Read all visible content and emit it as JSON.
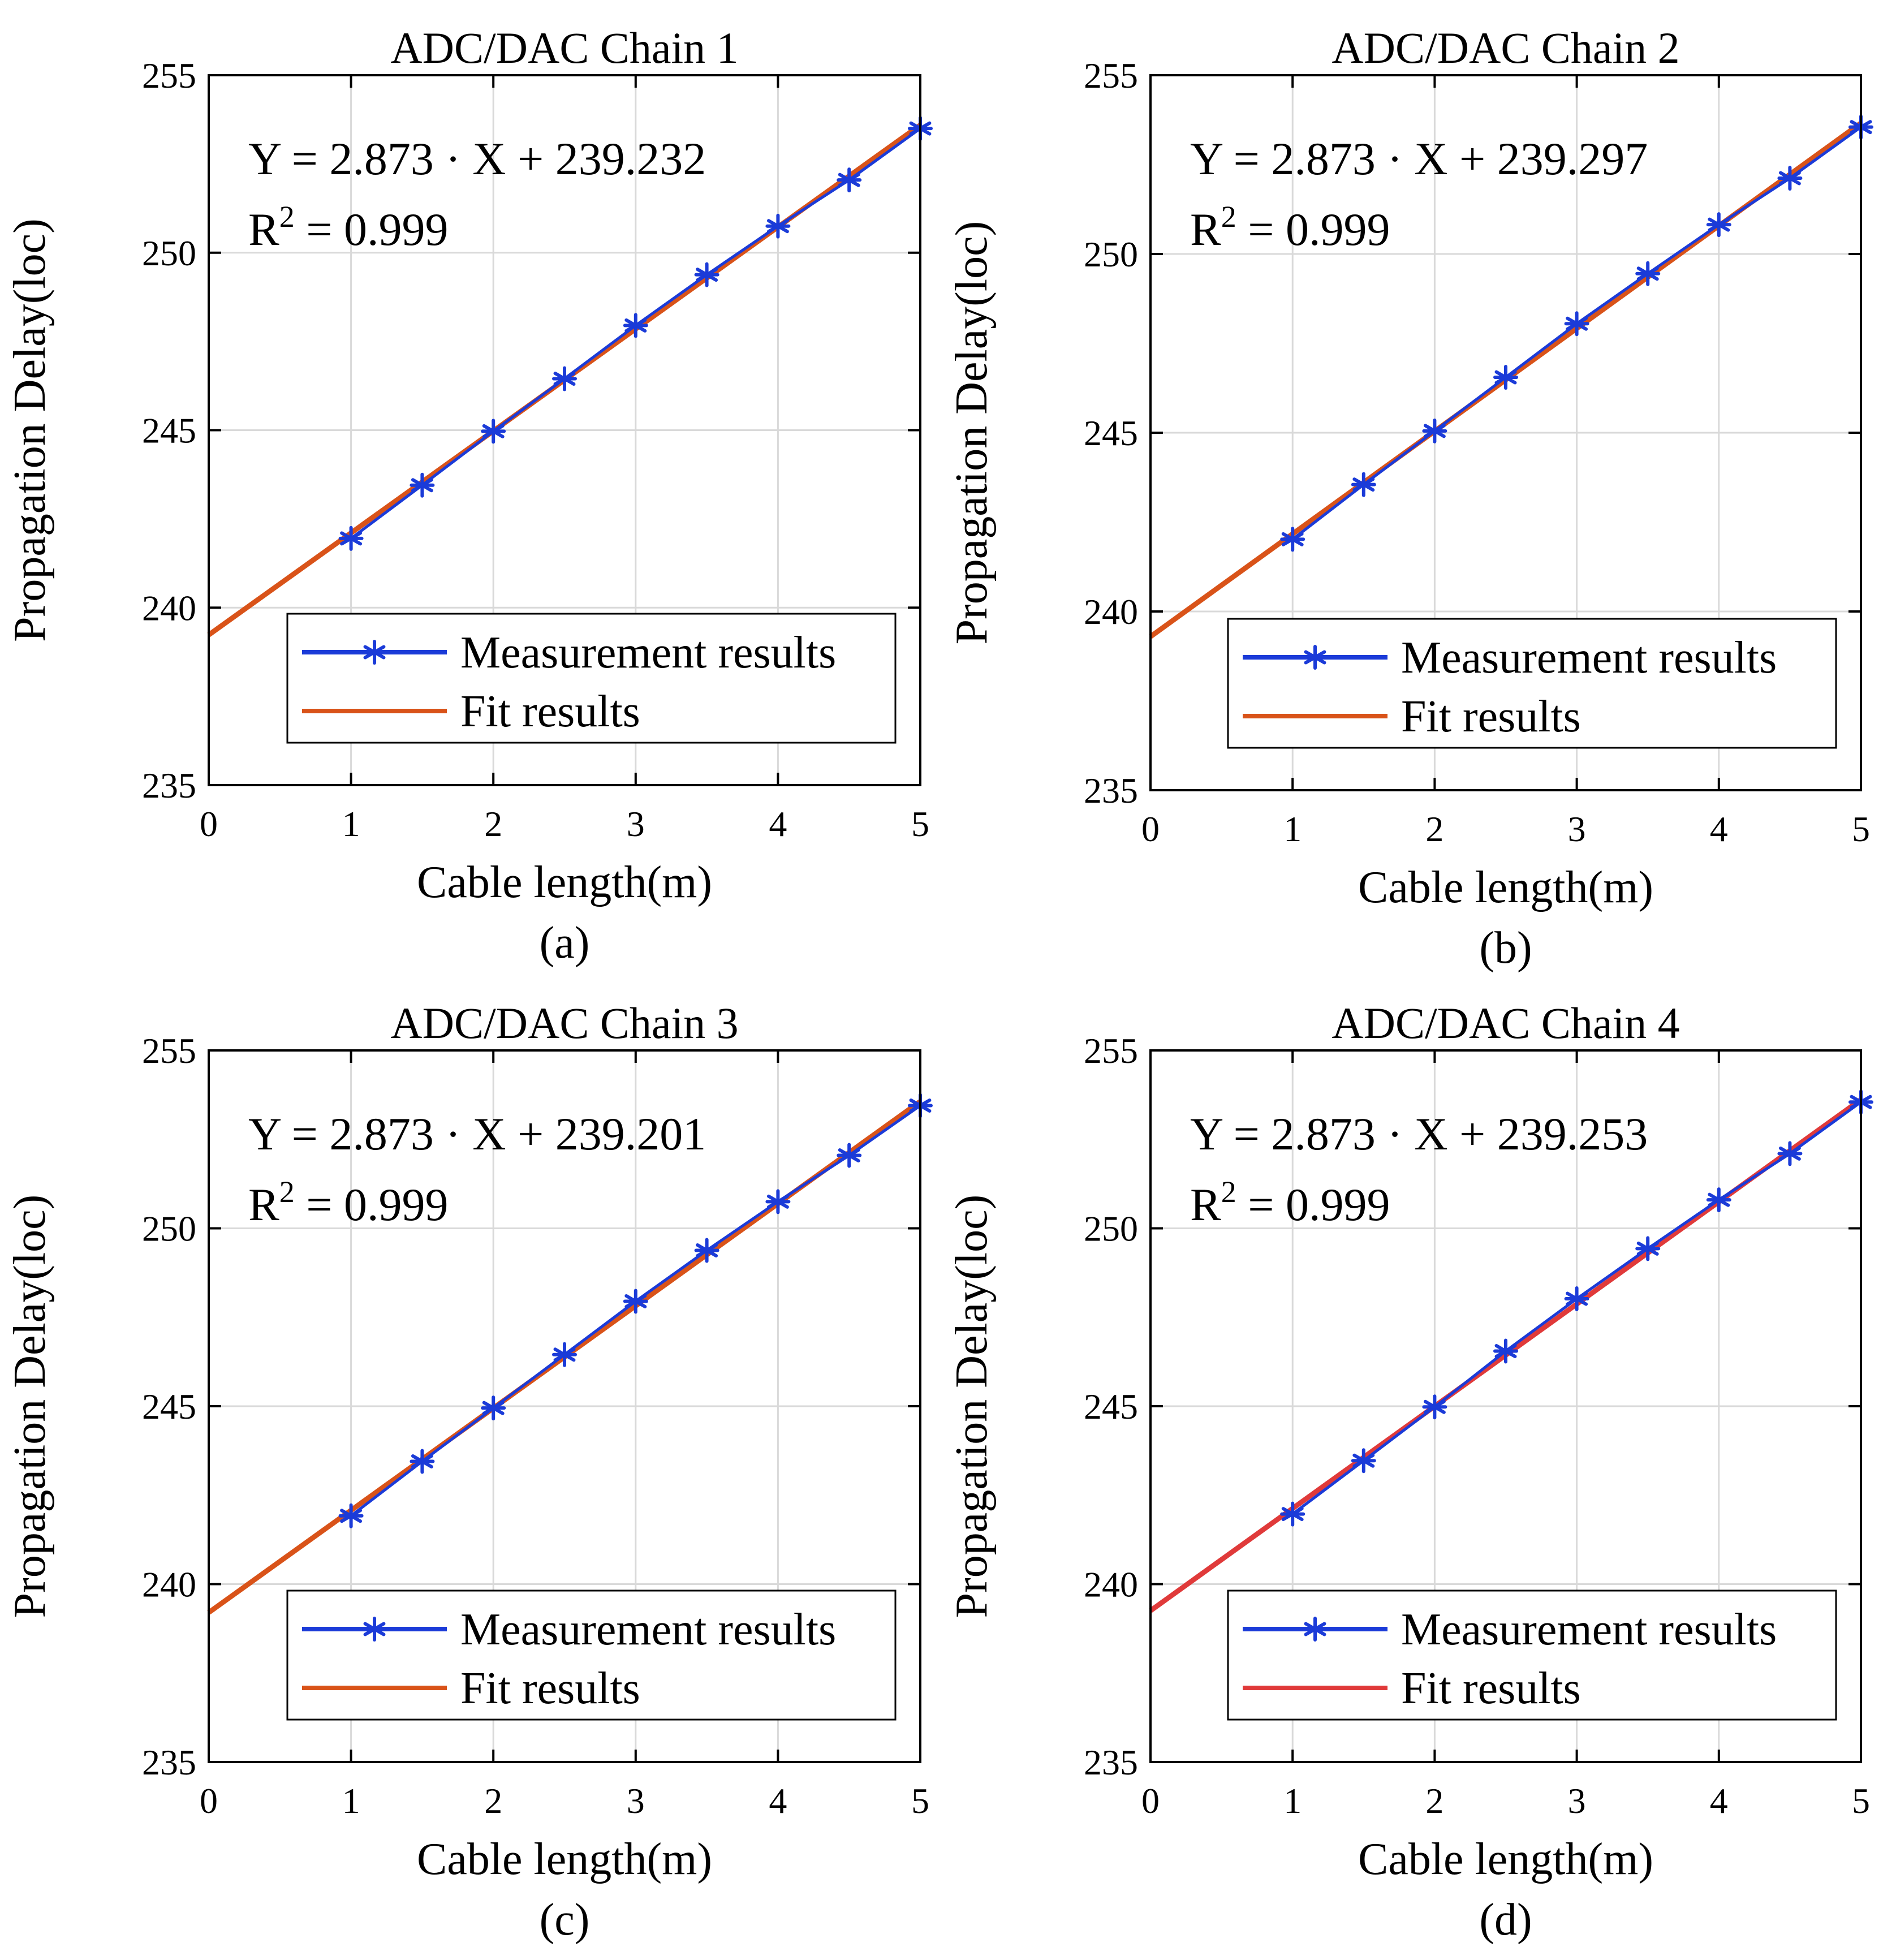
{
  "figure": {
    "captions": [
      "(a)",
      "(b)",
      "(c)",
      "(d)"
    ]
  },
  "chart_data": [
    {
      "type": "line",
      "title": "ADC/DAC Chain 1",
      "xlabel": "Cable length(m)",
      "ylabel": "Propagation Delay(loc)",
      "xlim": [
        0,
        5
      ],
      "ylim": [
        235,
        255
      ],
      "xticks": [
        "0",
        "1",
        "2",
        "3",
        "4",
        "5"
      ],
      "yticks": [
        "235",
        "240",
        "245",
        "250",
        "255"
      ],
      "grid": true,
      "equation": "Y = 2.873 · X + 239.232",
      "r2_label": "R",
      "r2_exp": "2",
      "r2_value": "= 0.999",
      "legend_placement": "bottom-right",
      "fit": {
        "name": "Fit results",
        "slope": 2.873,
        "intercept": 239.232,
        "color": "#d95319"
      },
      "series": [
        {
          "name": "Measurement results",
          "color": "#1b3bd8",
          "marker": "asterisk",
          "x": [
            1,
            1.5,
            2,
            2.5,
            3,
            3.5,
            4,
            4.5,
            5
          ],
          "y": [
            241.95,
            243.45,
            244.97,
            246.45,
            247.95,
            249.38,
            250.75,
            252.05,
            253.5
          ]
        }
      ]
    },
    {
      "type": "line",
      "title": "ADC/DAC Chain 2",
      "xlabel": "Cable length(m)",
      "ylabel": "Propagation Delay(loc)",
      "xlim": [
        0,
        5
      ],
      "ylim": [
        235,
        255
      ],
      "xticks": [
        "0",
        "1",
        "2",
        "3",
        "4",
        "5"
      ],
      "yticks": [
        "235",
        "240",
        "245",
        "250",
        "255"
      ],
      "grid": true,
      "equation": "Y = 2.873 · X + 239.297",
      "r2_label": "R",
      "r2_exp": "2",
      "r2_value": "= 0.999",
      "legend_placement": "bottom-right",
      "fit": {
        "name": "Fit results",
        "slope": 2.873,
        "intercept": 239.297,
        "color": "#d95319"
      },
      "series": [
        {
          "name": "Measurement results",
          "color": "#1b3bd8",
          "marker": "asterisk",
          "x": [
            1,
            1.5,
            2,
            2.5,
            3,
            3.5,
            4,
            4.5,
            5
          ],
          "y": [
            242.02,
            243.55,
            245.05,
            246.55,
            248.05,
            249.45,
            250.82,
            252.12,
            253.55
          ]
        }
      ]
    },
    {
      "type": "line",
      "title": "ADC/DAC Chain 3",
      "xlabel": "Cable length(m)",
      "ylabel": "Propagation Delay(loc)",
      "xlim": [
        0,
        5
      ],
      "ylim": [
        235,
        255
      ],
      "xticks": [
        "0",
        "1",
        "2",
        "3",
        "4",
        "5"
      ],
      "yticks": [
        "235",
        "240",
        "245",
        "250",
        "255"
      ],
      "grid": true,
      "equation": "Y = 2.873 · X + 239.201",
      "r2_label": "R",
      "r2_exp": "2",
      "r2_value": "= 0.999",
      "legend_placement": "bottom-right",
      "fit": {
        "name": "Fit results",
        "slope": 2.873,
        "intercept": 239.201,
        "color": "#d95319"
      },
      "series": [
        {
          "name": "Measurement results",
          "color": "#1b3bd8",
          "marker": "asterisk",
          "x": [
            1,
            1.5,
            2,
            2.5,
            3,
            3.5,
            4,
            4.5,
            5
          ],
          "y": [
            241.92,
            243.45,
            244.95,
            246.45,
            247.95,
            249.38,
            250.75,
            252.05,
            253.45
          ]
        }
      ]
    },
    {
      "type": "line",
      "title": "ADC/DAC Chain 4",
      "xlabel": "Cable length(m)",
      "ylabel": "Propagation Delay(loc)",
      "xlim": [
        0,
        5
      ],
      "ylim": [
        235,
        255
      ],
      "xticks": [
        "0",
        "1",
        "2",
        "3",
        "4",
        "5"
      ],
      "yticks": [
        "235",
        "240",
        "245",
        "250",
        "255"
      ],
      "grid": true,
      "equation": "Y = 2.873 · X + 239.253",
      "r2_label": "R",
      "r2_exp": "2",
      "r2_value": "= 0.999",
      "legend_placement": "bottom-right",
      "fit": {
        "name": "Fit results",
        "slope": 2.873,
        "intercept": 239.253,
        "color": "#e03a3a"
      },
      "series": [
        {
          "name": "Measurement results",
          "color": "#1b3bd8",
          "marker": "asterisk",
          "x": [
            1,
            1.5,
            2,
            2.5,
            3,
            3.5,
            4,
            4.5,
            5
          ],
          "y": [
            241.97,
            243.47,
            244.98,
            246.55,
            248.02,
            249.43,
            250.8,
            252.1,
            253.55
          ]
        }
      ]
    }
  ]
}
